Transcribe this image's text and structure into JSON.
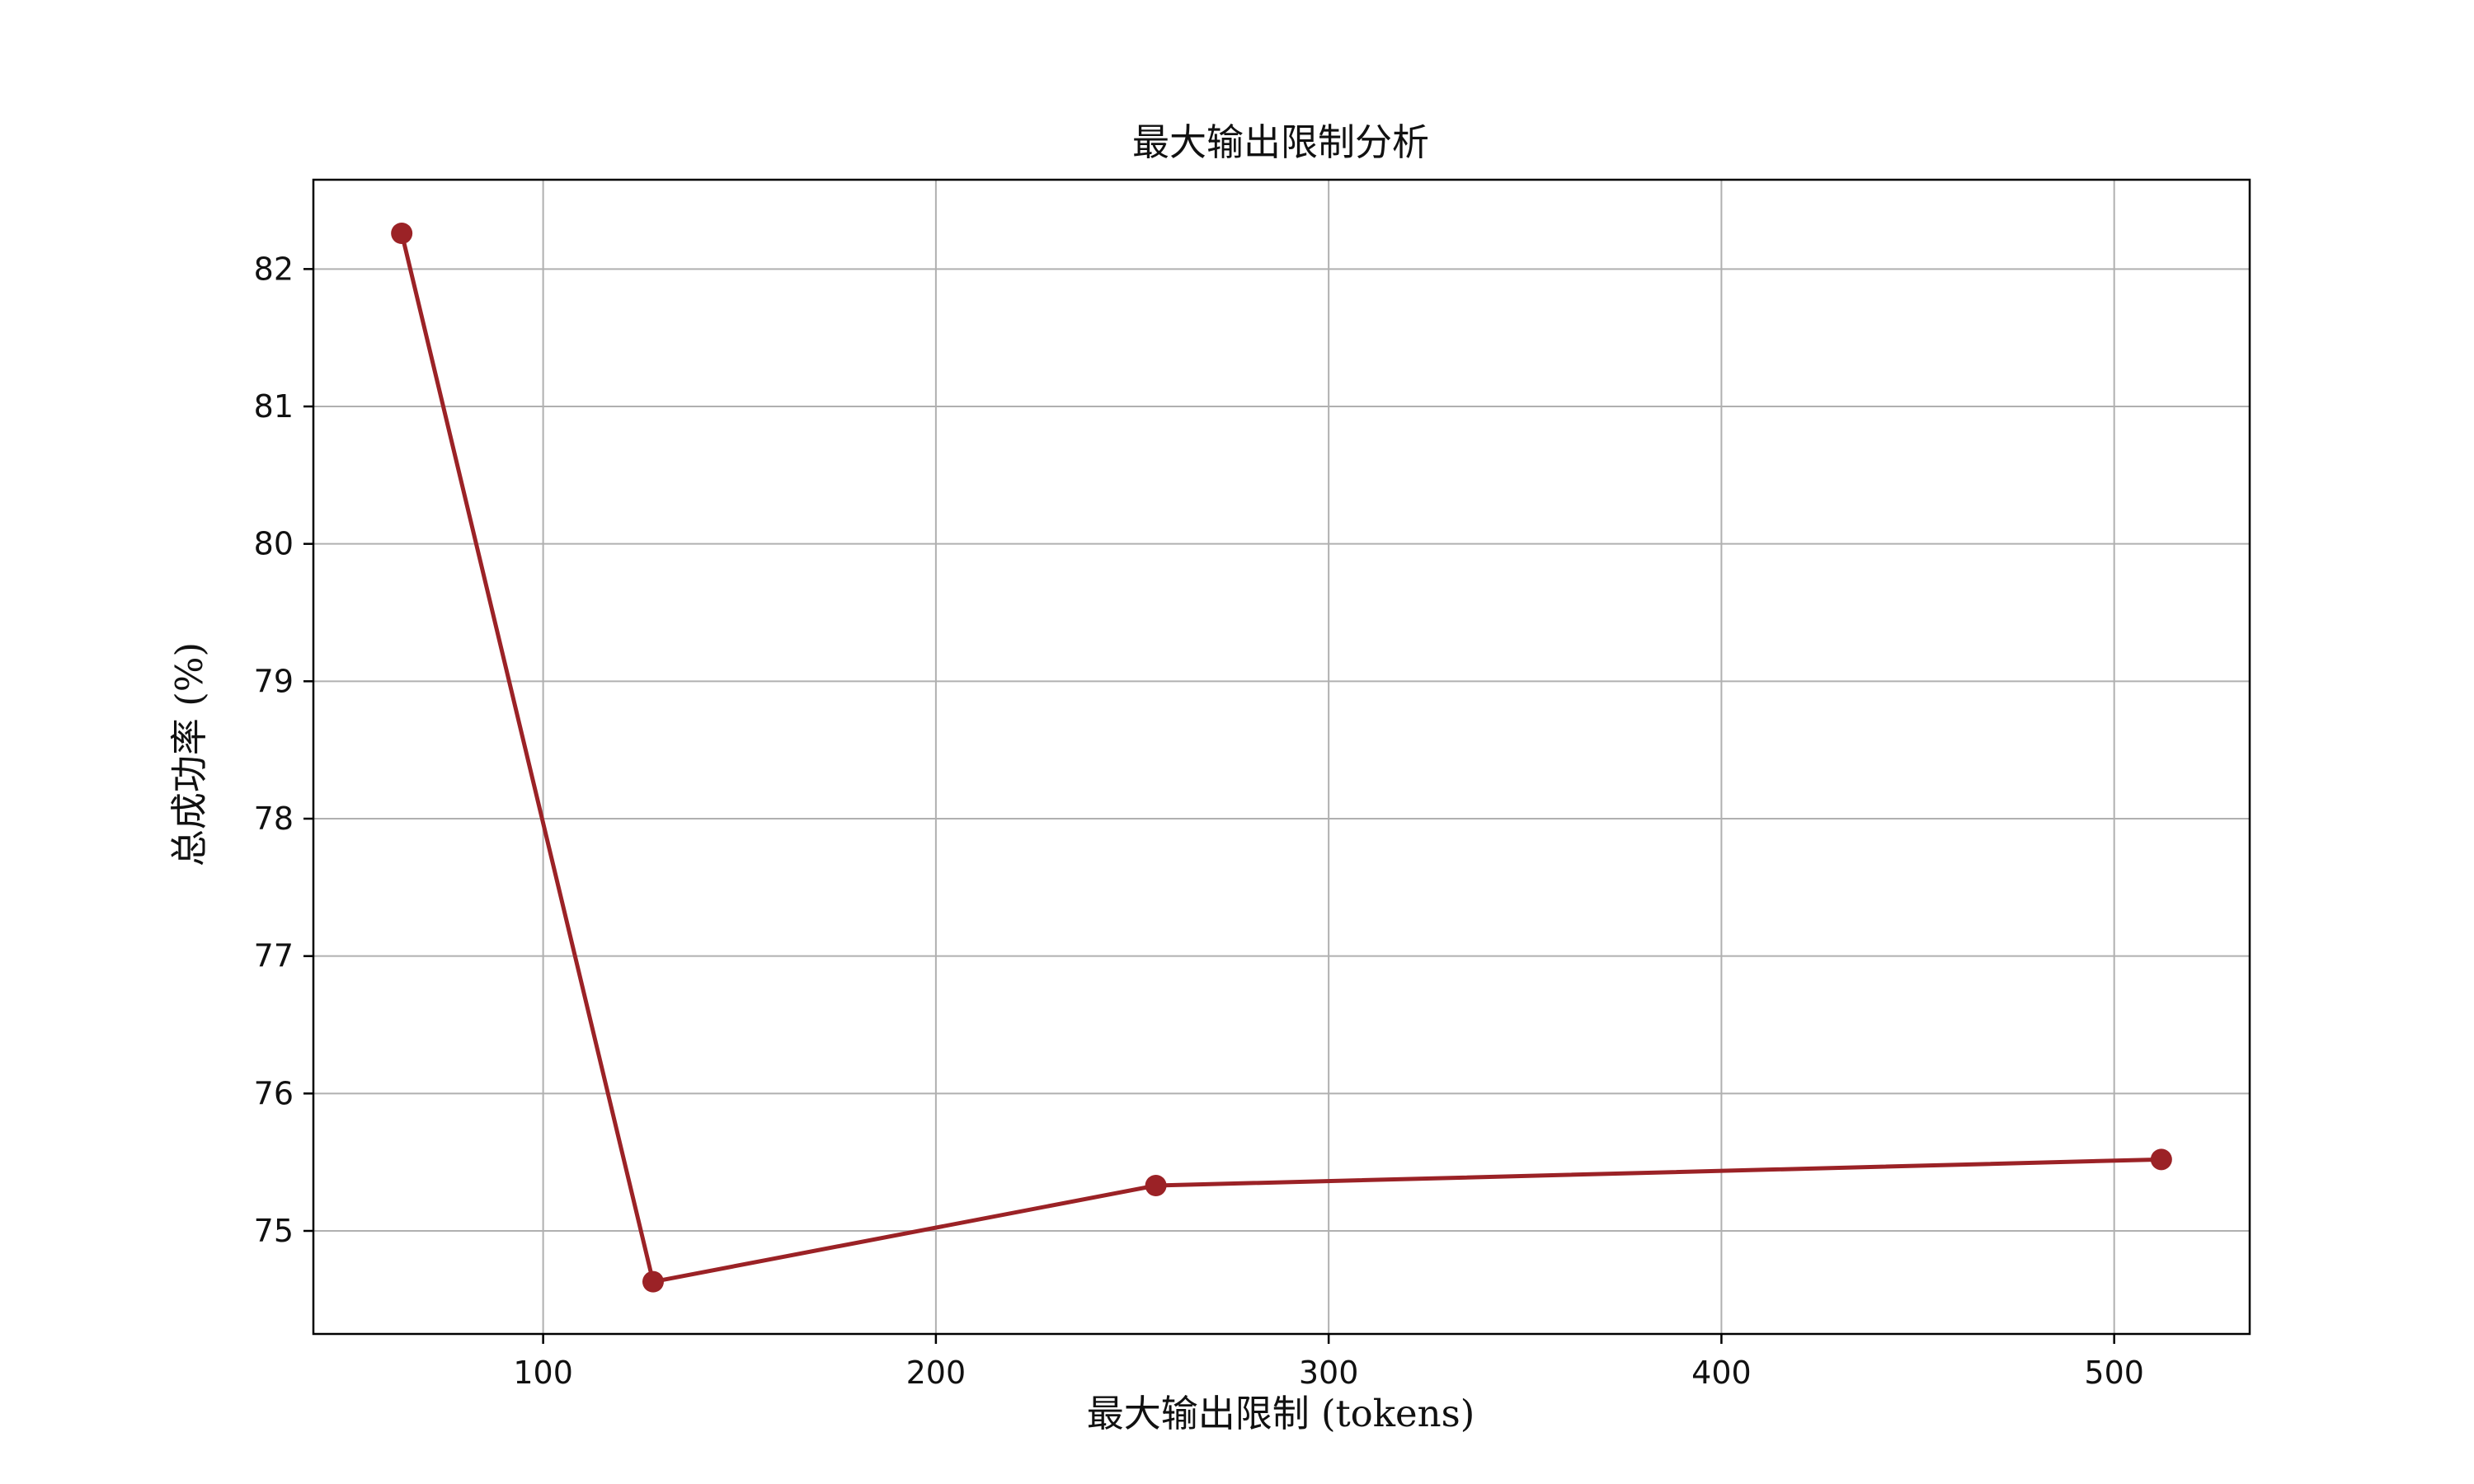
{
  "chart_data": {
    "type": "line",
    "title": "最大输出限制分析",
    "xlabel": "最大输出限制 (tokens)",
    "ylabel": "总成功率 (%)",
    "x": [
      64,
      128,
      256,
      512
    ],
    "series": [
      {
        "values": [
          82.26,
          74.63,
          75.33,
          75.52
        ],
        "color": "#9b2226",
        "marker": "circle"
      }
    ],
    "xlim": [
      41.5,
      534.5
    ],
    "ylim": [
      74.25,
      82.65
    ],
    "xticks": [
      100,
      200,
      300,
      400,
      500
    ],
    "yticks": [
      75,
      76,
      77,
      78,
      79,
      80,
      81,
      82
    ],
    "grid": true,
    "grid_color": "#b0b0b0",
    "legend": "none"
  }
}
